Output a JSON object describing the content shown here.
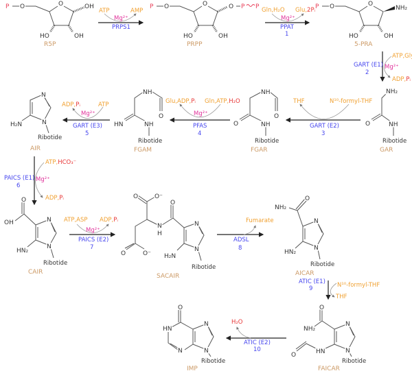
{
  "colors": {
    "molecule_name": "#cc9a66",
    "cofactor": "#f0a030",
    "phosphate_water": "#e83838",
    "magnesium": "#e0309a",
    "enzyme": "#4545ee",
    "phosphate_group": "#e8405a"
  },
  "molecules": {
    "r5p": {
      "name": "R5P",
      "atoms": [
        "P",
        "O",
        "O",
        "OH",
        "HO",
        "OH"
      ]
    },
    "prpp": {
      "name": "PRPP",
      "atoms": [
        "P",
        "O",
        "O",
        "O",
        "P",
        "P",
        "HO",
        "OH"
      ]
    },
    "pra": {
      "name": "5-PRA",
      "atoms": [
        "P",
        "O",
        "O",
        "NH₂",
        "HO",
        "OH"
      ]
    },
    "gar": {
      "name": "GAR",
      "atoms": [
        "NH₂",
        "O",
        "NH",
        "Ribotide"
      ]
    },
    "fgar": {
      "name": "FGAR",
      "atoms": [
        "NH",
        "O",
        "O",
        "NH",
        "Ribotide"
      ]
    },
    "fgam": {
      "name": "FGAM",
      "atoms": [
        "NH",
        "O",
        "HN",
        "NH",
        "Ribotide"
      ]
    },
    "air": {
      "name": "AIR",
      "atoms": [
        "N",
        "N",
        "H₂N",
        "Ribotide"
      ]
    },
    "cair": {
      "name": "CAIR",
      "atoms": [
        "O",
        "OH",
        "N",
        "N",
        "HN₂",
        "Ribotide"
      ]
    },
    "sacair": {
      "name": "SACAIR",
      "atoms": [
        "O",
        "O⁻",
        "N",
        "H",
        "O",
        "O",
        "O⁻",
        "N",
        "N",
        "H₂N",
        "Ribotide"
      ]
    },
    "aicar": {
      "name": "AICAR",
      "atoms": [
        "O",
        "NH₂",
        "N",
        "N",
        "HN₂",
        "Ribotide"
      ]
    },
    "faicar": {
      "name": "FAICAR",
      "atoms": [
        "O",
        "NH₂",
        "N",
        "N",
        "HN",
        "O",
        "Ribotide"
      ]
    },
    "imp": {
      "name": "IMP",
      "atoms": [
        "O",
        "HN",
        "N",
        "N",
        "N",
        "Ribotide"
      ]
    }
  },
  "reactions": [
    {
      "enzyme": "PRPS1",
      "step": "",
      "in": "ATP",
      "out": "AMP",
      "cofactor": "Mg²⁺"
    },
    {
      "enzyme": "PPAT",
      "step": "1",
      "in": "Gln,H₂O",
      "out_a": "Glu,",
      "out_b": "2Pᵢ",
      "cofactor": "Mg²⁺"
    },
    {
      "enzyme": "GART (E1)",
      "step": "2",
      "in": "ATP,Gly",
      "out_a": "ADP,",
      "out_b": "Pᵢ",
      "cofactor": "Mg²⁺"
    },
    {
      "enzyme": "GART (E2)",
      "step": "3",
      "in": "N¹⁰-formyl-THF",
      "out": "THF"
    },
    {
      "enzyme": "PFAS",
      "step": "4",
      "in_a": "Gln,ATP,",
      "in_b": "H₂O",
      "out_a": "Glu,ADP,",
      "out_b": "Pᵢ",
      "cofactor": "Mg²⁺"
    },
    {
      "enzyme": "GART (E3)",
      "step": "5",
      "in": "ATP",
      "out_a": "ADP,",
      "out_b": "Pᵢ",
      "cofactor": "Mg²⁺"
    },
    {
      "enzyme": "PAICS (E1)",
      "step": "6",
      "in_a": "ATP,",
      "in_b": "HCO₃⁻",
      "out_a": "ADP,",
      "out_b": "Pᵢ",
      "cofactor": "Mg²⁺"
    },
    {
      "enzyme": "PAICS (E2)",
      "step": "7",
      "in": "ATP,ASP",
      "out_a": "ADP,",
      "out_b": "Pᵢ",
      "cofactor": "Mg²⁺"
    },
    {
      "enzyme": "ADSL",
      "step": "8",
      "out": "Fumarate"
    },
    {
      "enzyme": "ATIC (E1)",
      "step": "9",
      "in": "N¹⁰-formyl-THF",
      "out": "THF"
    },
    {
      "enzyme": "ATIC (E2)",
      "step": "10",
      "out": "H₂O"
    }
  ]
}
